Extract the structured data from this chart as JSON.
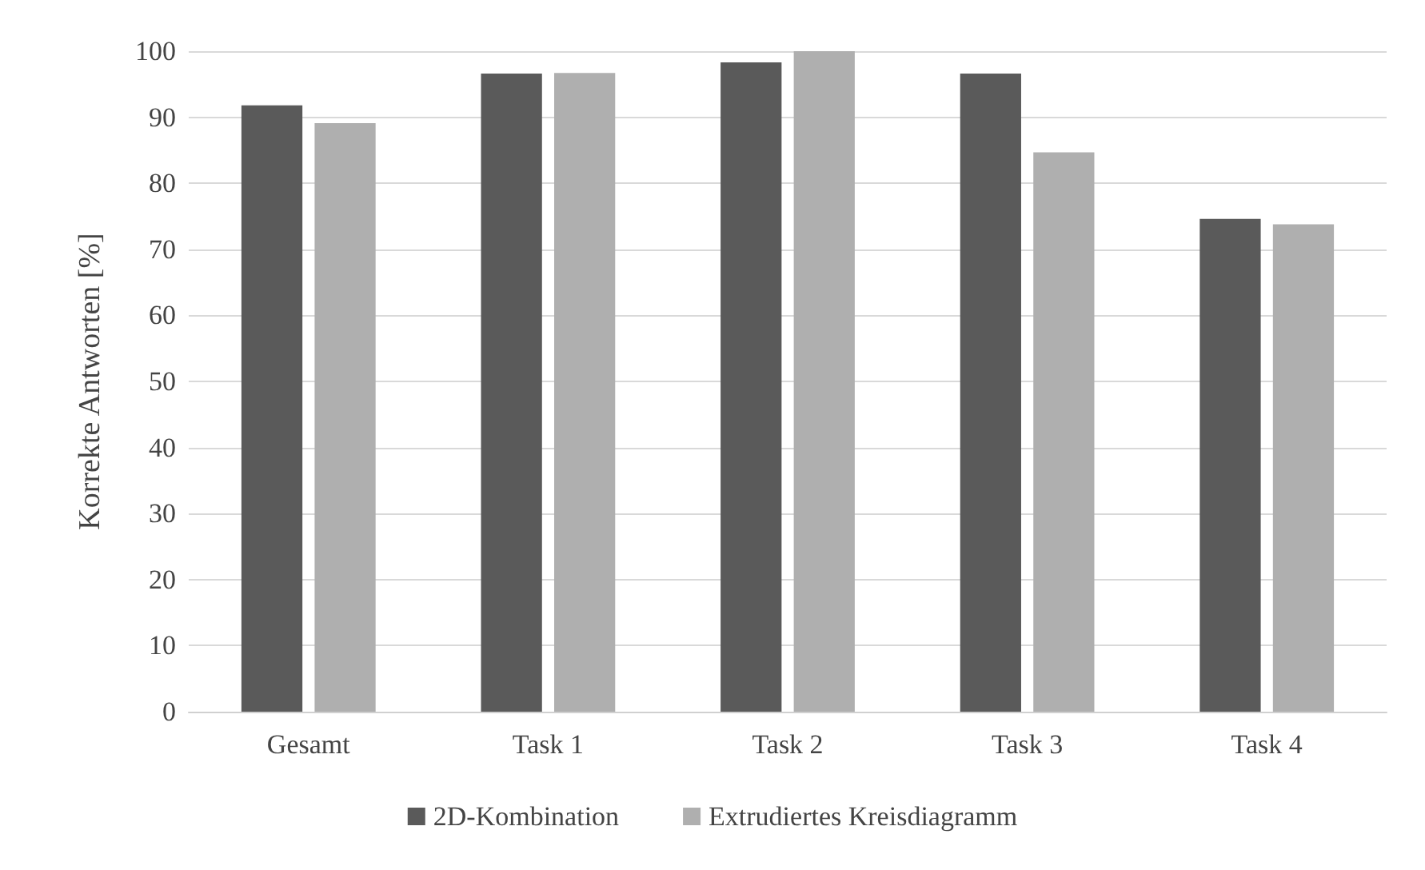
{
  "chart_data": {
    "type": "bar",
    "ylabel": "Korrekte Antworten [%]",
    "categories": [
      "Gesamt",
      "Task 1",
      "Task 2",
      "Task 3",
      "Task 4"
    ],
    "series": [
      {
        "name": "2D-Kombination",
        "color": "#5a5a5a",
        "values": [
          91.8,
          96.6,
          98.3,
          96.6,
          74.6
        ]
      },
      {
        "name": "Extrudiertes Kreisdiagramm",
        "color": "#afafaf",
        "values": [
          89.1,
          96.7,
          100,
          84.7,
          73.8
        ]
      }
    ],
    "ylim": [
      0,
      100
    ],
    "yticks": [
      0,
      10,
      20,
      30,
      40,
      50,
      60,
      70,
      80,
      90,
      100
    ],
    "grid": "y",
    "legend": "bottom"
  }
}
